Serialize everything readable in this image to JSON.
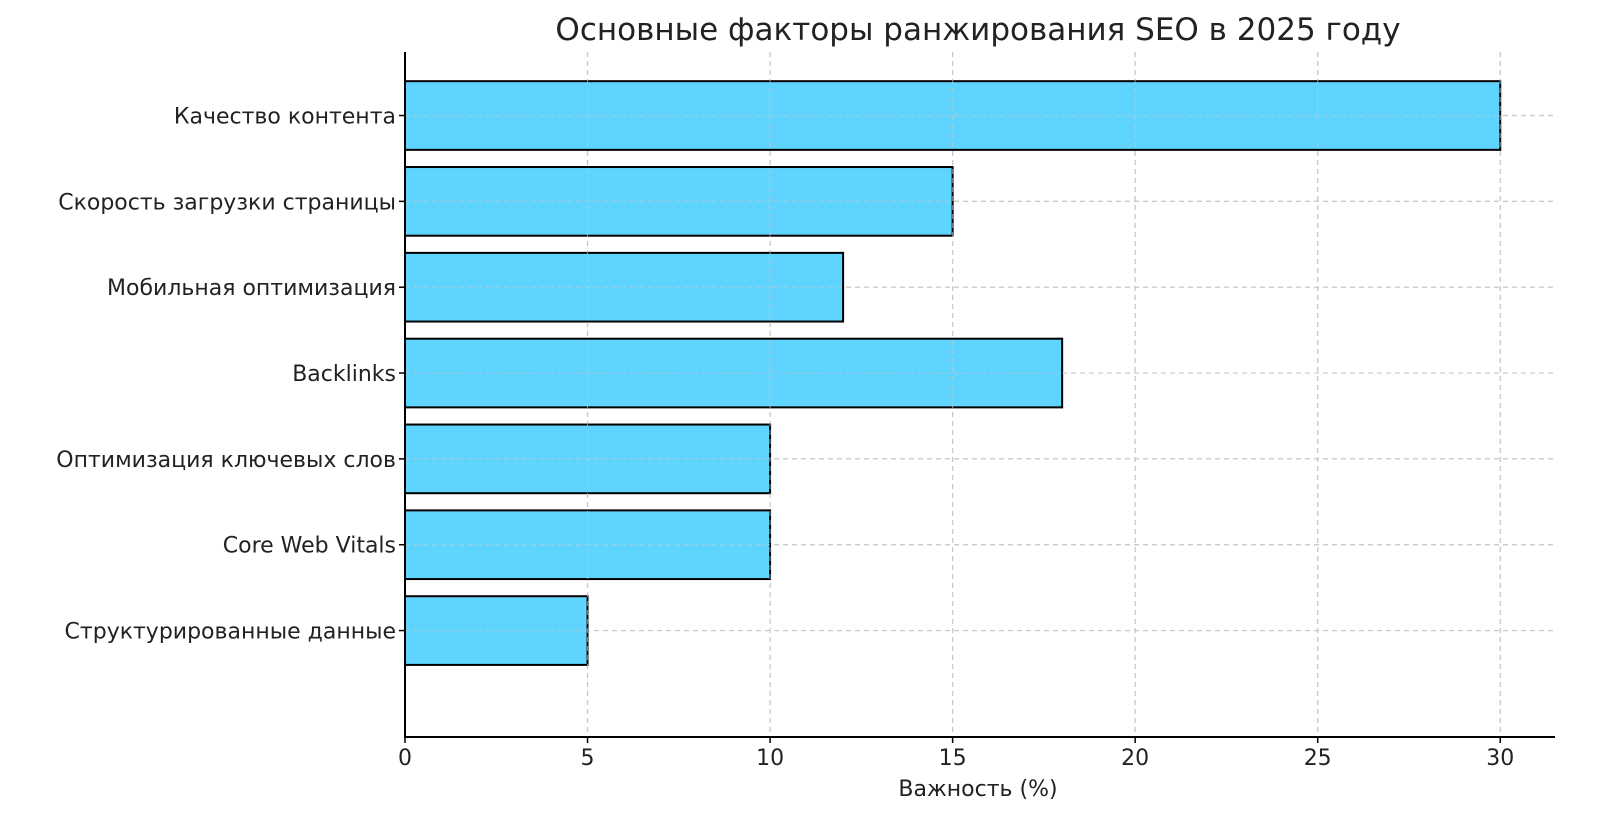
{
  "chart_data": {
    "type": "bar",
    "orientation": "horizontal",
    "title": "Основные факторы ранжирования SEO в 2025 году",
    "xlabel": "Важность (%)",
    "ylabel": "",
    "categories": [
      "Качество контента",
      "Скорость загрузки страницы",
      "Мобильная оптимизация",
      "Backlinks",
      "Оптимизация ключевых слов",
      "Core Web Vitals",
      "Структурированные данные"
    ],
    "values": [
      30,
      15,
      12,
      18,
      10,
      10,
      5
    ],
    "xlim": [
      0,
      31.5
    ],
    "xticks": [
      "0",
      "5",
      "10",
      "15",
      "20",
      "25",
      "30"
    ],
    "grid": true,
    "bar_color": "#5fd4ff",
    "edge_color": "#000000"
  }
}
